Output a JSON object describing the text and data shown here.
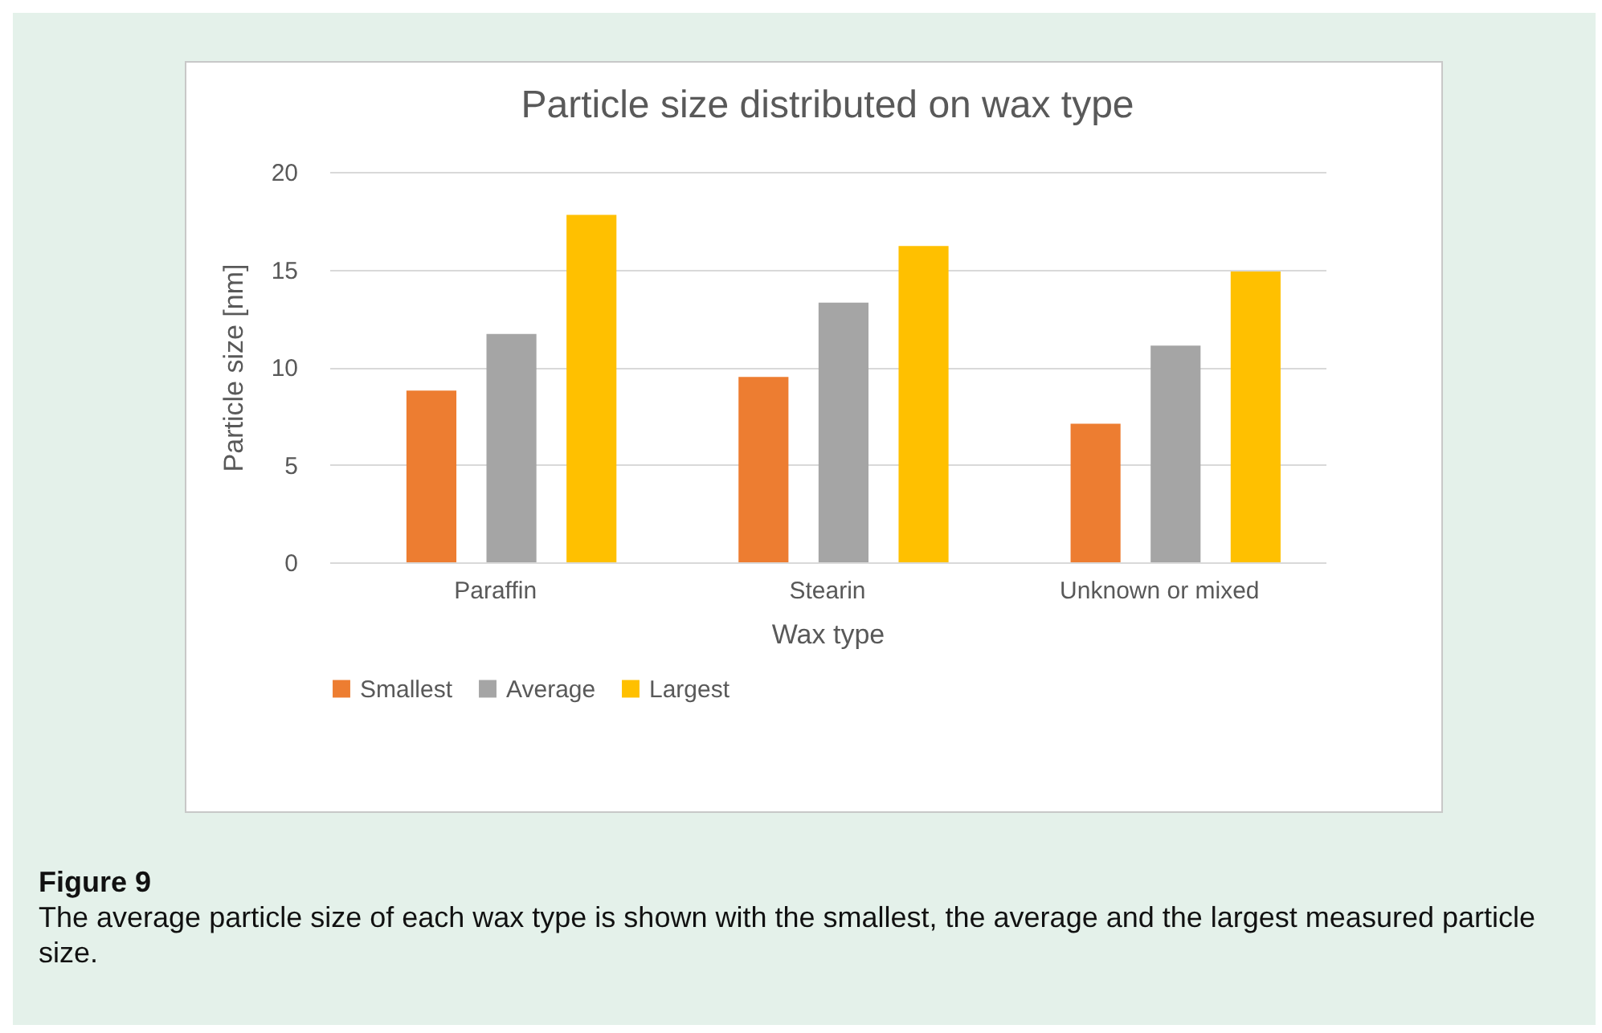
{
  "chart_data": {
    "type": "bar",
    "title": "Particle size distributed on wax type",
    "xlabel": "Wax type",
    "ylabel": "Particle size [nm]",
    "categories": [
      "Paraffin",
      "Stearin",
      "Unknown or mixed"
    ],
    "series": [
      {
        "name": "Smallest",
        "color": "#ed7d31",
        "values": [
          8.8,
          9.5,
          7.1
        ]
      },
      {
        "name": "Average",
        "color": "#a5a5a5",
        "values": [
          11.7,
          13.3,
          11.1
        ]
      },
      {
        "name": "Largest",
        "color": "#ffc000",
        "values": [
          17.8,
          16.2,
          14.9
        ]
      }
    ],
    "ylim": [
      0,
      20
    ],
    "yticks": [
      0,
      5,
      10,
      15,
      20
    ],
    "grid": "y",
    "legend": "bottom",
    "annotations": [
      "Figure 9",
      "The average particle size of each wax type is shown with the smallest, the average and the largest measured particle size."
    ]
  }
}
